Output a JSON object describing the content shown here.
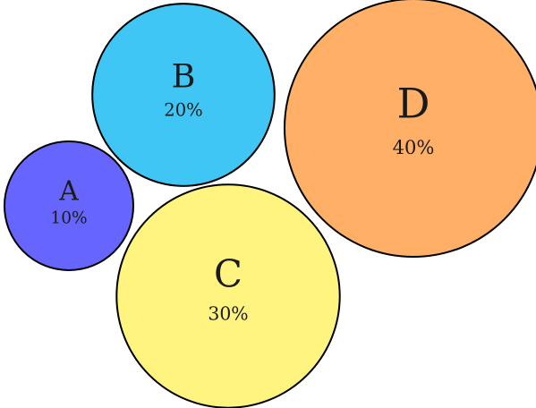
{
  "chart_data": {
    "type": "bubble",
    "title": "",
    "series": [
      {
        "label": "A",
        "value": 10,
        "value_text": "10%",
        "color": "#6666ff"
      },
      {
        "label": "B",
        "value": 20,
        "value_text": "20%",
        "color": "#40c6f4"
      },
      {
        "label": "C",
        "value": 30,
        "value_text": "30%",
        "color": "#fff480"
      },
      {
        "label": "D",
        "value": 40,
        "value_text": "40%",
        "color": "#ffb066"
      }
    ]
  }
}
